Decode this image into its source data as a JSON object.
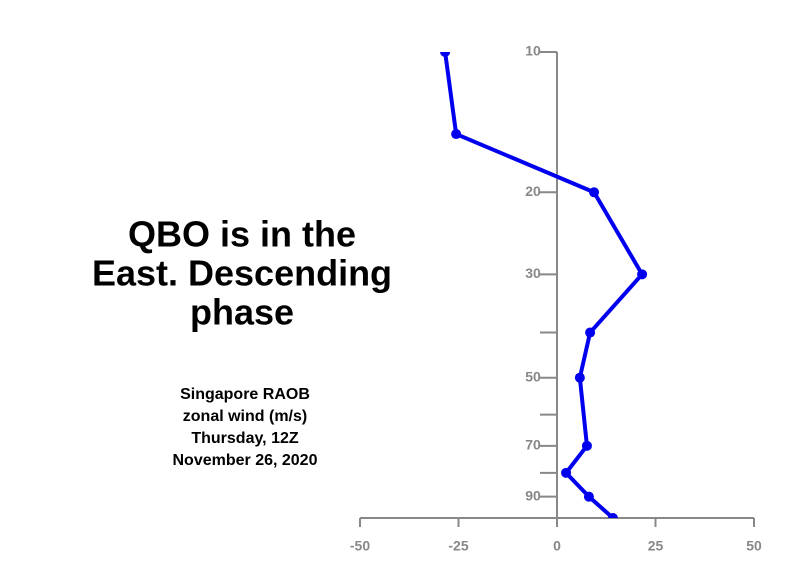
{
  "chart_data": {
    "type": "line",
    "title": [
      "QBO is in the",
      "East. Descending",
      "phase"
    ],
    "subtitle": [
      "Singapore RAOB",
      "zonal wind (m/s)",
      "Thursday, 12Z",
      "November 26, 2020"
    ],
    "x": [
      -28.4,
      -25.6,
      9.4,
      21.6,
      8.4,
      5.8,
      7.6,
      2.3,
      8.1,
      14.2
    ],
    "values": [
      10,
      15,
      20,
      30,
      40,
      50,
      70,
      80,
      90,
      100
    ],
    "color": "#0000ee",
    "xlim": [
      -50,
      50
    ],
    "xticks": [
      -50,
      -25,
      0,
      25,
      50
    ],
    "ylim": [
      10,
      100
    ],
    "ylog": true,
    "yinverted": true,
    "yticks": [
      10,
      20,
      30,
      50,
      70,
      90
    ],
    "minor_yticks": [
      40,
      60,
      80,
      100
    ]
  }
}
